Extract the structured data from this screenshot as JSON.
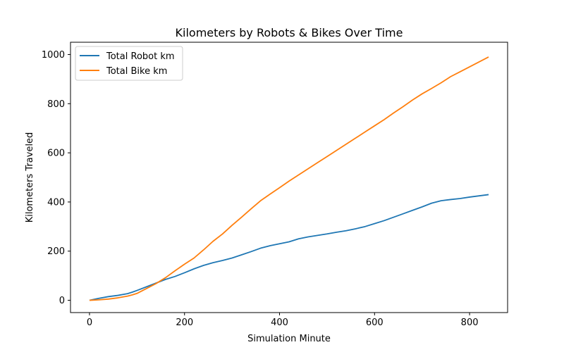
{
  "chart_data": {
    "type": "line",
    "title": "Kilometers by Robots & Bikes Over Time",
    "xlabel": "Simulation Minute",
    "ylabel": "Kilometers Traveled",
    "xlim": [
      -40,
      880
    ],
    "ylim": [
      -50,
      1050
    ],
    "xticks": [
      0,
      200,
      400,
      600,
      800
    ],
    "yticks": [
      0,
      200,
      400,
      600,
      800,
      1000
    ],
    "grid": false,
    "legend_position": "top-left",
    "series": [
      {
        "name": "Total Robot km",
        "color": "#1f77b4",
        "x": [
          0,
          20,
          40,
          60,
          80,
          90,
          100,
          120,
          140,
          160,
          180,
          200,
          220,
          240,
          260,
          280,
          300,
          320,
          340,
          360,
          380,
          400,
          420,
          440,
          460,
          480,
          500,
          520,
          540,
          560,
          580,
          600,
          620,
          640,
          660,
          680,
          700,
          720,
          740,
          760,
          780,
          800,
          820,
          840
        ],
        "y": [
          0,
          8,
          15,
          20,
          27,
          33,
          40,
          55,
          70,
          85,
          97,
          112,
          128,
          142,
          153,
          162,
          172,
          185,
          198,
          212,
          222,
          230,
          238,
          250,
          258,
          264,
          270,
          277,
          283,
          291,
          300,
          312,
          324,
          338,
          352,
          366,
          380,
          395,
          405,
          410,
          414,
          420,
          425,
          430
        ]
      },
      {
        "name": "Total Bike km",
        "color": "#ff7f0e",
        "x": [
          0,
          20,
          40,
          60,
          80,
          90,
          100,
          120,
          140,
          160,
          180,
          200,
          220,
          240,
          260,
          280,
          300,
          320,
          340,
          360,
          380,
          400,
          420,
          440,
          460,
          480,
          500,
          520,
          540,
          560,
          580,
          600,
          620,
          640,
          660,
          680,
          700,
          720,
          740,
          760,
          780,
          800,
          820,
          840
        ],
        "y": [
          0,
          2,
          5,
          10,
          17,
          22,
          28,
          48,
          68,
          92,
          120,
          147,
          172,
          205,
          240,
          270,
          305,
          338,
          372,
          405,
          432,
          458,
          485,
          510,
          535,
          560,
          585,
          610,
          635,
          660,
          685,
          710,
          735,
          762,
          788,
          815,
          840,
          862,
          885,
          910,
          930,
          950,
          970,
          990
        ]
      }
    ]
  }
}
